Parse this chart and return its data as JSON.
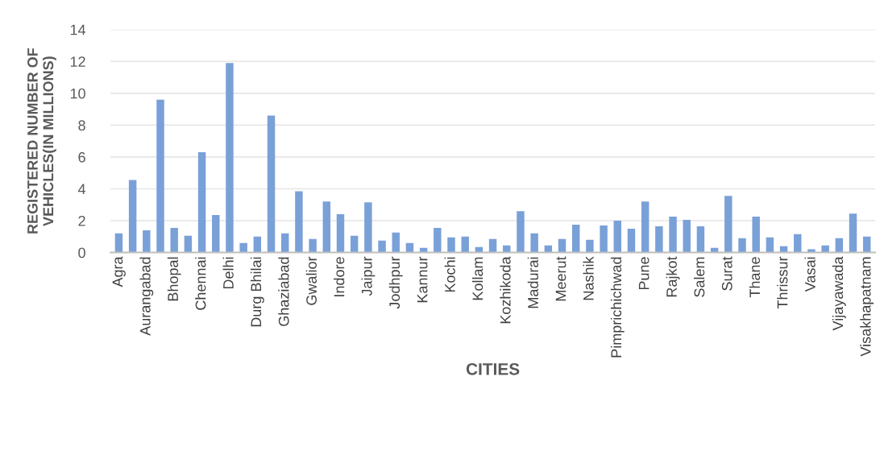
{
  "chart_data": {
    "type": "bar",
    "xlabel": "CITIES",
    "ylabel": "REGISTERED NUMBER OF VEHICLES(IN MILLIONS)",
    "categories": [
      "Agra",
      null,
      "Aurangabad",
      null,
      "Bhopal",
      null,
      "Chennai",
      null,
      "Delhi",
      null,
      "Durg Bhilai",
      null,
      "Ghaziabad",
      null,
      "Gwalior",
      null,
      "Indore",
      null,
      "Jaipur",
      null,
      "Jodhpur",
      null,
      "Kannur",
      null,
      "Kochi",
      null,
      "Kollam",
      null,
      "Kozhikoda",
      null,
      "Madurai",
      null,
      "Meerut",
      null,
      "Nashik",
      null,
      "Pimprichichwad",
      null,
      "Pune",
      null,
      "Rajkot",
      null,
      "Salem",
      null,
      "Surat",
      null,
      "Thane",
      null,
      "Thrissur",
      null,
      "Vasai",
      null,
      "Vijayawada",
      null,
      "Visakhapatnam"
    ],
    "values": [
      1.2,
      4.55,
      1.4,
      9.6,
      1.55,
      1.05,
      6.3,
      2.35,
      11.9,
      0.6,
      1.0,
      8.6,
      1.2,
      3.85,
      0.85,
      3.2,
      2.4,
      1.05,
      3.15,
      0.75,
      1.25,
      0.6,
      0.3,
      1.55,
      0.95,
      1.0,
      0.35,
      0.85,
      0.45,
      2.6,
      1.2,
      0.45,
      0.85,
      1.75,
      0.8,
      1.7,
      2.0,
      1.5,
      3.2,
      1.65,
      2.25,
      2.05,
      1.65,
      0.3,
      3.55,
      0.9,
      2.25,
      0.95,
      0.4,
      1.15,
      0.2,
      0.45,
      0.9,
      2.45,
      1.0
    ],
    "color": "#7aa0d8",
    "ylim": [
      0,
      14
    ],
    "yticks": [
      0,
      2,
      4,
      6,
      8,
      10,
      12,
      14
    ],
    "grid": "y",
    "legend": false
  }
}
